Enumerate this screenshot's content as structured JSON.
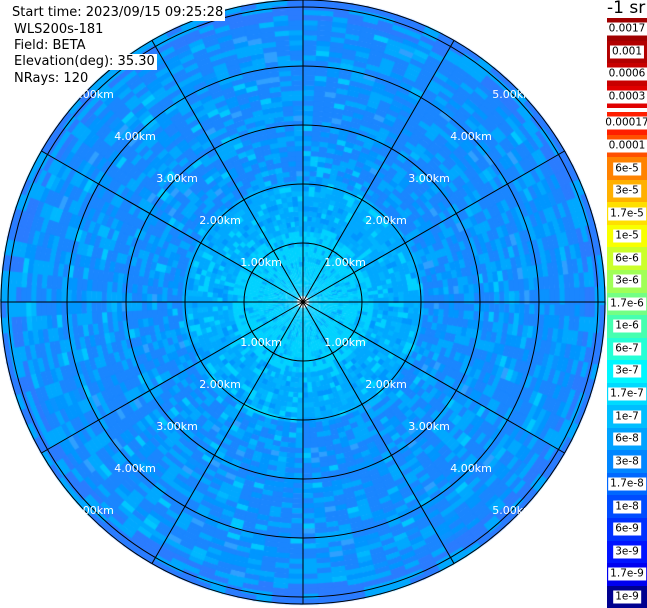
{
  "header": {
    "start_time": "Start time: 2023/09/15 09:25:28",
    "instrument": "WLS200s-181",
    "field": "Field: BETA",
    "elevation": "Elevation(deg): 35.30",
    "nrays": "NRays: 120"
  },
  "colorbar": {
    "unit": "-1 sr",
    "high_block": [
      {
        "label": "0.0017",
        "color": "#a10000"
      },
      {
        "label": "0.001",
        "color": "#b20000"
      },
      {
        "label": "0.0006",
        "color": "#c80000"
      },
      {
        "label": "0.0003",
        "color": "#e00000"
      }
    ],
    "main_block": [
      {
        "label": "0.00017",
        "color": "#ff1f00"
      },
      {
        "label": "0.0001",
        "color": "#ff5000"
      },
      {
        "label": "6e-5",
        "color": "#ff8200"
      },
      {
        "label": "3e-5",
        "color": "#ffb000"
      },
      {
        "label": "1.7e-5",
        "color": "#ffdf00"
      },
      {
        "label": "1e-5",
        "color": "#f8ff00"
      },
      {
        "label": "6e-6",
        "color": "#cbff2a"
      },
      {
        "label": "3e-6",
        "color": "#a0ff57"
      },
      {
        "label": "1.7e-6",
        "color": "#73ff84"
      },
      {
        "label": "1e-6",
        "color": "#46ffb0"
      },
      {
        "label": "6e-7",
        "color": "#24ffd6"
      },
      {
        "label": "3e-7",
        "color": "#00f6ff"
      },
      {
        "label": "1.7e-7",
        "color": "#00daff"
      },
      {
        "label": "1e-7",
        "color": "#00beff"
      },
      {
        "label": "6e-8",
        "color": "#00a2ff"
      },
      {
        "label": "3e-8",
        "color": "#0086ff"
      },
      {
        "label": "1.7e-8",
        "color": "#0068ff"
      },
      {
        "label": "1e-8",
        "color": "#004cff"
      },
      {
        "label": "6e-9",
        "color": "#0030ff"
      },
      {
        "label": "3e-9",
        "color": "#0014ff"
      },
      {
        "label": "1.7e-9",
        "color": "#0000f0"
      },
      {
        "label": "1e-9",
        "color": "#00008f"
      }
    ]
  },
  "range_labels": [
    "1.00km",
    "2.00km",
    "3.00km",
    "4.00km",
    "5.00km"
  ],
  "plot": {
    "num_rays": 120,
    "spoke_count": 12,
    "ring_count": 6,
    "colors": {
      "inner_cyan": "#00d2ff",
      "mid_blue": "#00a8ff",
      "outer_blue": "#1a86ff",
      "edge_blue": "#2a7cff",
      "grid_line": "#000000"
    }
  }
}
